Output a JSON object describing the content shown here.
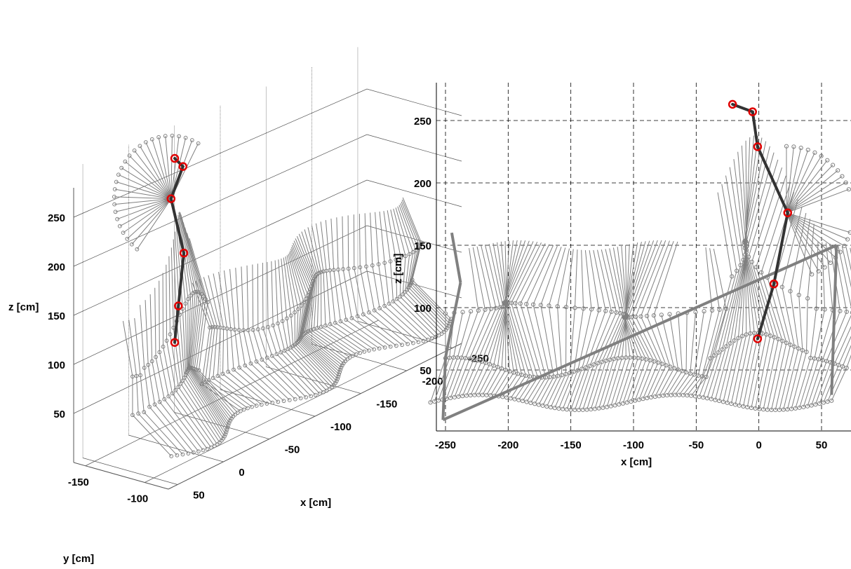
{
  "chart_data": [
    {
      "type": "line",
      "view": "3d-perspective",
      "xlabel": "x  [cm]",
      "ylabel": "y  [cm]",
      "zlabel": "z  [cm]",
      "x_ticks": [
        -250,
        -200,
        -150,
        -100,
        -50,
        0,
        50
      ],
      "y_ticks": [
        -150,
        -100
      ],
      "z_ticks": [
        50,
        100,
        150,
        200,
        250
      ],
      "grid": true,
      "series": [
        {
          "color": "#808080",
          "marker": "circle-open",
          "kind": "trajectory-mesh"
        },
        {
          "color": "#333333",
          "marker_color": "#e00000",
          "kind": "posture-skeleton",
          "points": [
            [
              4,
              -118,
              112
            ],
            [
              0,
              -118,
              148
            ],
            [
              -6,
              -118,
              200
            ],
            [
              8,
              -118,
              262
            ],
            [
              -5,
              -118,
              290
            ],
            [
              4,
              -118,
              302
            ]
          ]
        }
      ]
    },
    {
      "type": "line",
      "view": "x-z",
      "xlabel": "x  [cm]",
      "ylabel": "z  [cm]",
      "xlim": [
        -255,
        73
      ],
      "ylim": [
        2,
        280
      ],
      "x_ticks": [
        -250,
        -200,
        -150,
        -100,
        -50,
        0,
        50
      ],
      "y_ticks": [
        50,
        100,
        150,
        200,
        250
      ],
      "grid": true,
      "grid_style": "dashed",
      "series": [
        {
          "color": "#808080",
          "marker": "circle-open",
          "kind": "trajectory-mesh"
        },
        {
          "color": "#333333",
          "marker_color": "#e00000",
          "kind": "posture-skeleton",
          "points": [
            [
              -1,
              75
            ],
            [
              12,
              119
            ],
            [
              23,
              176
            ],
            [
              -1,
              229
            ],
            [
              -5,
              257
            ],
            [
              -21,
              263
            ]
          ]
        }
      ]
    }
  ]
}
